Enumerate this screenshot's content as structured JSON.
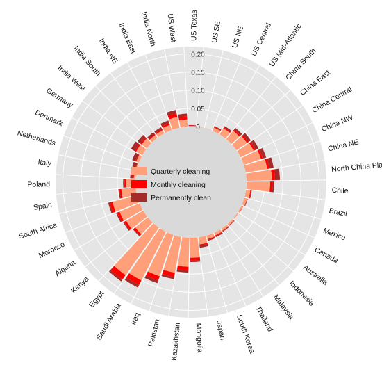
{
  "chart_data": {
    "type": "bar",
    "layout": "radial-stacked",
    "title": "",
    "radial_ticks": [
      "0",
      "0.05",
      "0.10",
      "0.15",
      "0.20"
    ],
    "rmax": 0.22,
    "categories": [
      "US Texas",
      "US SE",
      "US NE",
      "US Central",
      "US Mid-Atlantic",
      "China South",
      "China East",
      "China Central",
      "China NW",
      "China NE",
      "North China Plain",
      "Chile",
      "Brazil",
      "Mexico",
      "Canada",
      "Australia",
      "Indonesia",
      "Malaysia",
      "Thailand",
      "South Korea",
      "Japan",
      "Mongolia",
      "Kazakhstan",
      "Pakistan",
      "Iraq",
      "Saudi Arabia",
      "Egypt",
      "Kenya",
      "Algeria",
      "Morocco",
      "South Africa",
      "Spain",
      "Poland",
      "Italy",
      "Netherlands",
      "Denmark",
      "Germany",
      "India West",
      "India South",
      "India NE",
      "India East",
      "India North",
      "US West"
    ],
    "series": [
      {
        "name": "Quarterly cleaning",
        "color": "#FFA07A",
        "values": [
          0.002,
          0.001,
          0.001,
          0.01,
          0.02,
          0.03,
          0.035,
          0.04,
          0.05,
          0.06,
          0.07,
          0.065,
          0.012,
          0.008,
          0.004,
          0.003,
          0.005,
          0.006,
          0.008,
          0.01,
          0.02,
          0.055,
          0.08,
          0.1,
          0.12,
          0.15,
          0.16,
          0.045,
          0.055,
          0.06,
          0.07,
          0.04,
          0.025,
          0.005,
          0.003,
          0.008,
          0.02,
          0.018,
          0.01,
          0.01,
          0.015,
          0.03,
          0.02
        ]
      },
      {
        "name": "Monthly cleaning",
        "color": "#FF0000",
        "values": [
          0.001,
          0.0,
          0.0,
          0.002,
          0.003,
          0.004,
          0.005,
          0.005,
          0.005,
          0.006,
          0.008,
          0.007,
          0.002,
          0.001,
          0.001,
          0.0,
          0.001,
          0.001,
          0.002,
          0.002,
          0.003,
          0.008,
          0.01,
          0.012,
          0.012,
          0.014,
          0.015,
          0.006,
          0.006,
          0.007,
          0.008,
          0.005,
          0.004,
          0.002,
          0.001,
          0.002,
          0.004,
          0.004,
          0.003,
          0.003,
          0.005,
          0.01,
          0.008
        ]
      },
      {
        "name": "Permanently clean",
        "color": "#A52A2A",
        "values": [
          0.001,
          0.0,
          0.0,
          0.002,
          0.004,
          0.006,
          0.008,
          0.01,
          0.01,
          0.012,
          0.014,
          0.004,
          0.002,
          0.001,
          0.0,
          0.0,
          0.001,
          0.002,
          0.003,
          0.003,
          0.006,
          0.004,
          0.006,
          0.006,
          0.008,
          0.008,
          0.006,
          0.002,
          0.003,
          0.003,
          0.004,
          0.003,
          0.005,
          0.008,
          0.01,
          0.01,
          0.012,
          0.01,
          0.006,
          0.006,
          0.008,
          0.01,
          0.008
        ]
      }
    ],
    "legend": {
      "placement": "center",
      "entries": [
        "Quarterly cleaning",
        "Monthly cleaning",
        "Permanently clean"
      ]
    },
    "grid": true
  }
}
